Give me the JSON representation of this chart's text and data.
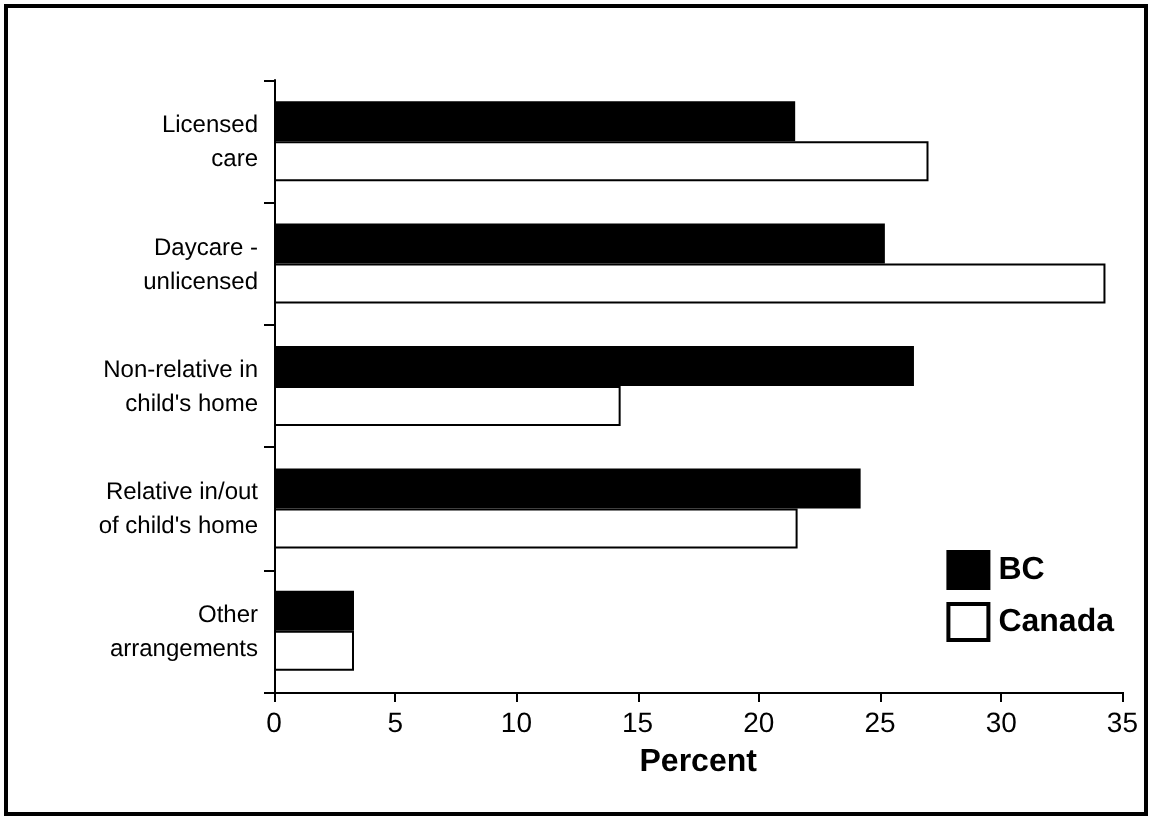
{
  "chart_data": {
    "type": "bar",
    "orientation": "horizontal",
    "xlabel": "Percent",
    "categories": [
      "Licensed\ncare",
      "Daycare -\nunlicensed",
      "Non-relative in\nchild's home",
      "Relative in/out\nof child's home",
      "Other\narrangements"
    ],
    "series": [
      {
        "name": "BC",
        "color": "#000000",
        "values": [
          21.5,
          25.2,
          26.4,
          24.2,
          3.3
        ]
      },
      {
        "name": "Canada",
        "color": "#ffffff",
        "values": [
          27.0,
          34.3,
          14.3,
          21.6,
          3.3
        ]
      }
    ],
    "xlim": [
      0,
      35
    ],
    "xticks": [
      0,
      5,
      10,
      15,
      20,
      25,
      30,
      35
    ],
    "grid": false,
    "legend": "bottom right"
  }
}
